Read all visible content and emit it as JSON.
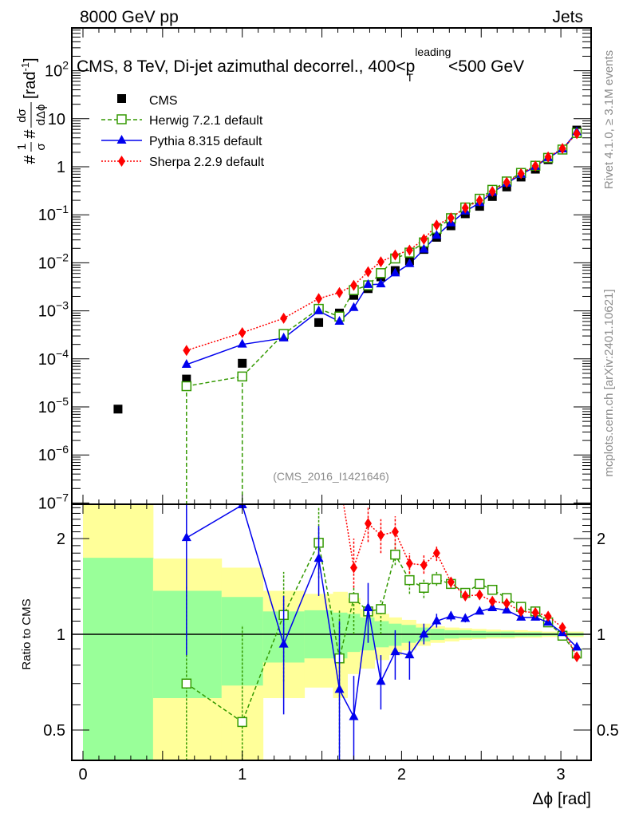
{
  "header": {
    "left": "8000 GeV pp",
    "right": "Jets"
  },
  "side_labels": {
    "rivet": "Rivet 4.1.0, ≥ 3.1M events",
    "mcplots": "mcplots.cern.ch [arXiv:2401.10621]"
  },
  "colors": {
    "cms": "#000000",
    "herwig": "#339900",
    "pythia": "#0000ee",
    "sherpa": "#ff0000",
    "band_yellow": "#ffff99",
    "band_green": "#99ff99"
  },
  "chart_data": [
    {
      "type": "scatter",
      "panel": "main",
      "title_main": "CMS, 8 TeV, Di-jet azimuthal decorrel., 400<p",
      "title_sup": "leading",
      "title_sub": "T",
      "title_end": "<500 GeV",
      "ylabel": {
        "hash1": "#",
        "num1": "1",
        "den1": "σ",
        "hash2": "#",
        "num2": "dσ",
        "den2": "dΔϕ",
        "unit": "[rad",
        "unit_sup": "-1",
        "unit_end": "]"
      },
      "yscale": "log",
      "xlim": [
        -0.07,
        3.19
      ],
      "ylim": [
        9.3e-08,
        776
      ],
      "ytick_labels": [
        {
          "v": 100,
          "base": "10",
          "exp": "2"
        },
        {
          "v": 10,
          "base": "10",
          "exp": ""
        },
        {
          "v": 1,
          "base": "1",
          "exp": ""
        },
        {
          "v": 0.1,
          "base": "10",
          "exp": "−1"
        },
        {
          "v": 0.01,
          "base": "10",
          "exp": "−2"
        },
        {
          "v": 0.001,
          "base": "10",
          "exp": "−3"
        },
        {
          "v": 0.0001,
          "base": "10",
          "exp": "−4"
        },
        {
          "v": 1e-05,
          "base": "10",
          "exp": "−5"
        },
        {
          "v": 1e-06,
          "base": "10",
          "exp": "−6"
        },
        {
          "v": 1e-07,
          "base": "10",
          "exp": "−7"
        }
      ],
      "annotation": "(CMS_2016_I1421646)",
      "legend_position": "top-left",
      "cms": {
        "name": "CMS",
        "x": [
          0.22,
          0.65,
          1.0,
          1.26,
          1.48,
          1.61,
          1.7,
          1.79,
          1.87,
          1.96,
          2.05,
          2.14,
          2.22,
          2.31,
          2.4,
          2.49,
          2.57,
          2.66,
          2.75,
          2.84,
          2.92,
          3.01,
          3.1
        ],
        "y": [
          9e-06,
          3.8e-05,
          8.1e-05,
          0.00029,
          0.00057,
          0.0009,
          0.0021,
          0.0029,
          0.0051,
          0.0069,
          0.011,
          0.019,
          0.034,
          0.059,
          0.105,
          0.15,
          0.24,
          0.38,
          0.61,
          0.89,
          1.4,
          2.3,
          5.8
        ]
      },
      "series": [
        {
          "key": "herwig",
          "name": "Herwig 7.2.1 default",
          "marker": "open-square",
          "line": "dashed",
          "x": [
            0.65,
            1.0,
            1.26,
            1.48,
            1.61,
            1.7,
            1.79,
            1.87,
            1.96,
            2.05,
            2.14,
            2.22,
            2.31,
            2.4,
            2.49,
            2.57,
            2.66,
            2.75,
            2.84,
            2.92,
            3.01,
            3.1
          ],
          "y": [
            2.7e-05,
            4.3e-05,
            0.00033,
            0.0011,
            0.00076,
            0.0027,
            0.0034,
            0.0061,
            0.0123,
            0.0163,
            0.0266,
            0.051,
            0.085,
            0.142,
            0.216,
            0.331,
            0.494,
            0.744,
            1.05,
            1.53,
            2.28,
            5.05
          ],
          "errors_reach_zero_at_x": [
            0.65,
            1.0
          ]
        },
        {
          "key": "pythia",
          "name": "Pythia 8.315 default",
          "marker": "triangle",
          "line": "solid",
          "x": [
            0.65,
            1.0,
            1.26,
            1.48,
            1.61,
            1.7,
            1.79,
            1.87,
            1.96,
            2.05,
            2.14,
            2.22,
            2.31,
            2.4,
            2.49,
            2.57,
            2.66,
            2.75,
            2.84,
            2.92,
            3.01,
            3.1
          ],
          "y": [
            7.6e-05,
            0.0002,
            0.00027,
            0.00099,
            0.0006,
            0.00116,
            0.0035,
            0.0036,
            0.0061,
            0.0095,
            0.019,
            0.037,
            0.067,
            0.118,
            0.177,
            0.29,
            0.45,
            0.69,
            1.01,
            1.53,
            2.32,
            5.28
          ],
          "errors_reach_zero_at_x": []
        },
        {
          "key": "sherpa",
          "name": "Sherpa 2.2.9 default",
          "marker": "diamond",
          "line": "dotted",
          "x": [
            0.65,
            1.0,
            1.26,
            1.48,
            1.61,
            1.7,
            1.79,
            1.87,
            1.96,
            2.05,
            2.14,
            2.22,
            2.31,
            2.4,
            2.49,
            2.57,
            2.66,
            2.75,
            2.84,
            2.92,
            3.01,
            3.1
          ],
          "y": [
            0.00015,
            0.00035,
            0.0007,
            0.0018,
            0.0024,
            0.0034,
            0.0065,
            0.0105,
            0.0145,
            0.0184,
            0.031,
            0.061,
            0.086,
            0.139,
            0.2,
            0.305,
            0.475,
            0.72,
            1.04,
            1.6,
            2.4,
            4.9
          ],
          "errors_reach_zero_at_x": []
        }
      ]
    },
    {
      "type": "scatter",
      "panel": "ratio",
      "ylabel": "Ratio to CMS",
      "xlabel": "Δϕ [rad]",
      "yscale": "log",
      "ylim": [
        0.397,
        2.52
      ],
      "xtick_labels": [
        "0",
        "1",
        "2",
        "3"
      ],
      "ytick_labels": [
        "2",
        "1",
        "0.5"
      ],
      "bands": {
        "edges": [
          0.0,
          0.44,
          0.87,
          1.13,
          1.39,
          1.57,
          1.66,
          1.74,
          1.83,
          1.92,
          2.0,
          2.09,
          2.18,
          2.27,
          2.36,
          2.44,
          2.53,
          2.62,
          2.71,
          2.79,
          2.88,
          2.97,
          3.05,
          3.14
        ],
        "yellow_hi": [
          2.6,
          1.73,
          1.62,
          1.37,
          1.34,
          1.36,
          1.3,
          1.2,
          1.16,
          1.13,
          1.11,
          1.08,
          1.06,
          1.05,
          1.045,
          1.04,
          1.035,
          1.03,
          1.03,
          1.025,
          1.02,
          1.02,
          1.02
        ],
        "green_hi": [
          1.74,
          1.37,
          1.31,
          1.18,
          1.19,
          1.17,
          1.16,
          1.13,
          1.1,
          1.08,
          1.07,
          1.05,
          1.04,
          1.03,
          1.03,
          1.025,
          1.02,
          1.02,
          1.015,
          1.015,
          1.01,
          1.01,
          1.01
        ],
        "green_lo": [
          0.3,
          0.63,
          0.69,
          0.815,
          0.84,
          0.84,
          0.88,
          0.89,
          0.91,
          0.92,
          0.94,
          0.95,
          0.96,
          0.97,
          0.975,
          0.975,
          0.98,
          0.98,
          0.985,
          0.985,
          0.99,
          0.99,
          0.99
        ],
        "yellow_lo": [
          0.3,
          0.3,
          0.3,
          0.63,
          0.68,
          0.63,
          0.75,
          0.78,
          0.83,
          0.86,
          0.89,
          0.92,
          0.94,
          0.95,
          0.96,
          0.965,
          0.97,
          0.97,
          0.975,
          0.975,
          0.98,
          0.98,
          0.98
        ]
      },
      "series": [
        {
          "key": "herwig",
          "x": [
            0.65,
            1.0,
            1.26,
            1.48,
            1.61,
            1.7,
            1.79,
            1.87,
            1.96,
            2.05,
            2.14,
            2.22,
            2.31,
            2.4,
            2.49,
            2.57,
            2.66,
            2.75,
            2.84,
            2.92,
            3.01,
            3.1
          ],
          "y": [
            0.7,
            0.53,
            1.15,
            1.94,
            0.84,
            1.3,
            1.18,
            1.2,
            1.78,
            1.48,
            1.4,
            1.49,
            1.44,
            1.35,
            1.44,
            1.38,
            1.3,
            1.22,
            1.18,
            1.09,
            0.99,
            0.87
          ],
          "err_lo": [
            0.3,
            0.3,
            0.71,
            1.5,
            0.3,
            1.0,
            1.12,
            1.0,
            1.65,
            1.34,
            1.3,
            1.42,
            1.4,
            1.32,
            1.41,
            1.36,
            1.28,
            1.2,
            1.16,
            1.08,
            0.98,
            0.86
          ],
          "err_hi": [
            1.41,
            1.07,
            1.57,
            2.5,
            1.2,
            1.42,
            1.26,
            1.28,
            1.95,
            1.62,
            1.5,
            1.57,
            1.48,
            1.38,
            1.47,
            1.4,
            1.32,
            1.24,
            1.2,
            1.1,
            1.0,
            0.88
          ]
        },
        {
          "key": "pythia",
          "x": [
            0.65,
            1.0,
            1.26,
            1.48,
            1.61,
            1.7,
            1.79,
            1.87,
            1.96,
            2.05,
            2.14,
            2.22,
            2.31,
            2.4,
            2.49,
            2.57,
            2.66,
            2.75,
            2.84,
            2.92,
            3.01,
            3.1
          ],
          "y": [
            2.01,
            2.55,
            0.93,
            1.73,
            0.67,
            0.55,
            1.21,
            0.71,
            0.88,
            0.86,
            1.0,
            1.1,
            1.14,
            1.12,
            1.18,
            1.21,
            1.19,
            1.13,
            1.13,
            1.09,
            1.01,
            0.91
          ],
          "err_lo": [
            0.86,
            2.55,
            0.56,
            1.32,
            0.3,
            0.3,
            0.94,
            0.58,
            0.72,
            0.72,
            0.93,
            1.05,
            1.1,
            1.09,
            1.16,
            1.19,
            1.17,
            1.11,
            1.11,
            1.08,
            1.0,
            0.9
          ],
          "err_hi": [
            2.6,
            2.55,
            1.32,
            2.19,
            1.1,
            0.74,
            1.45,
            0.86,
            1.03,
            0.95,
            1.08,
            1.16,
            1.18,
            1.15,
            1.2,
            1.23,
            1.21,
            1.15,
            1.15,
            1.1,
            1.02,
            0.92
          ]
        },
        {
          "key": "sherpa",
          "x": [
            1.7,
            1.79,
            1.87,
            1.96,
            2.05,
            2.14,
            2.22,
            2.31,
            2.4,
            2.49,
            2.57,
            2.66,
            2.75,
            2.84,
            2.92,
            3.01,
            3.1
          ],
          "y": [
            1.62,
            2.23,
            2.05,
            2.1,
            1.67,
            1.65,
            1.8,
            1.46,
            1.32,
            1.33,
            1.27,
            1.25,
            1.18,
            1.17,
            1.14,
            1.05,
            0.85
          ],
          "err_lo": [
            1.4,
            1.95,
            1.8,
            1.85,
            1.55,
            1.55,
            1.7,
            1.4,
            1.28,
            1.3,
            1.25,
            1.23,
            1.16,
            1.15,
            1.12,
            1.04,
            0.84
          ],
          "err_hi": [
            2.0,
            2.5,
            2.3,
            2.35,
            1.8,
            1.78,
            1.9,
            1.52,
            1.36,
            1.36,
            1.29,
            1.27,
            1.2,
            1.19,
            1.16,
            1.06,
            0.86
          ],
          "line_from_offscale_x": 1.61
        }
      ]
    }
  ]
}
